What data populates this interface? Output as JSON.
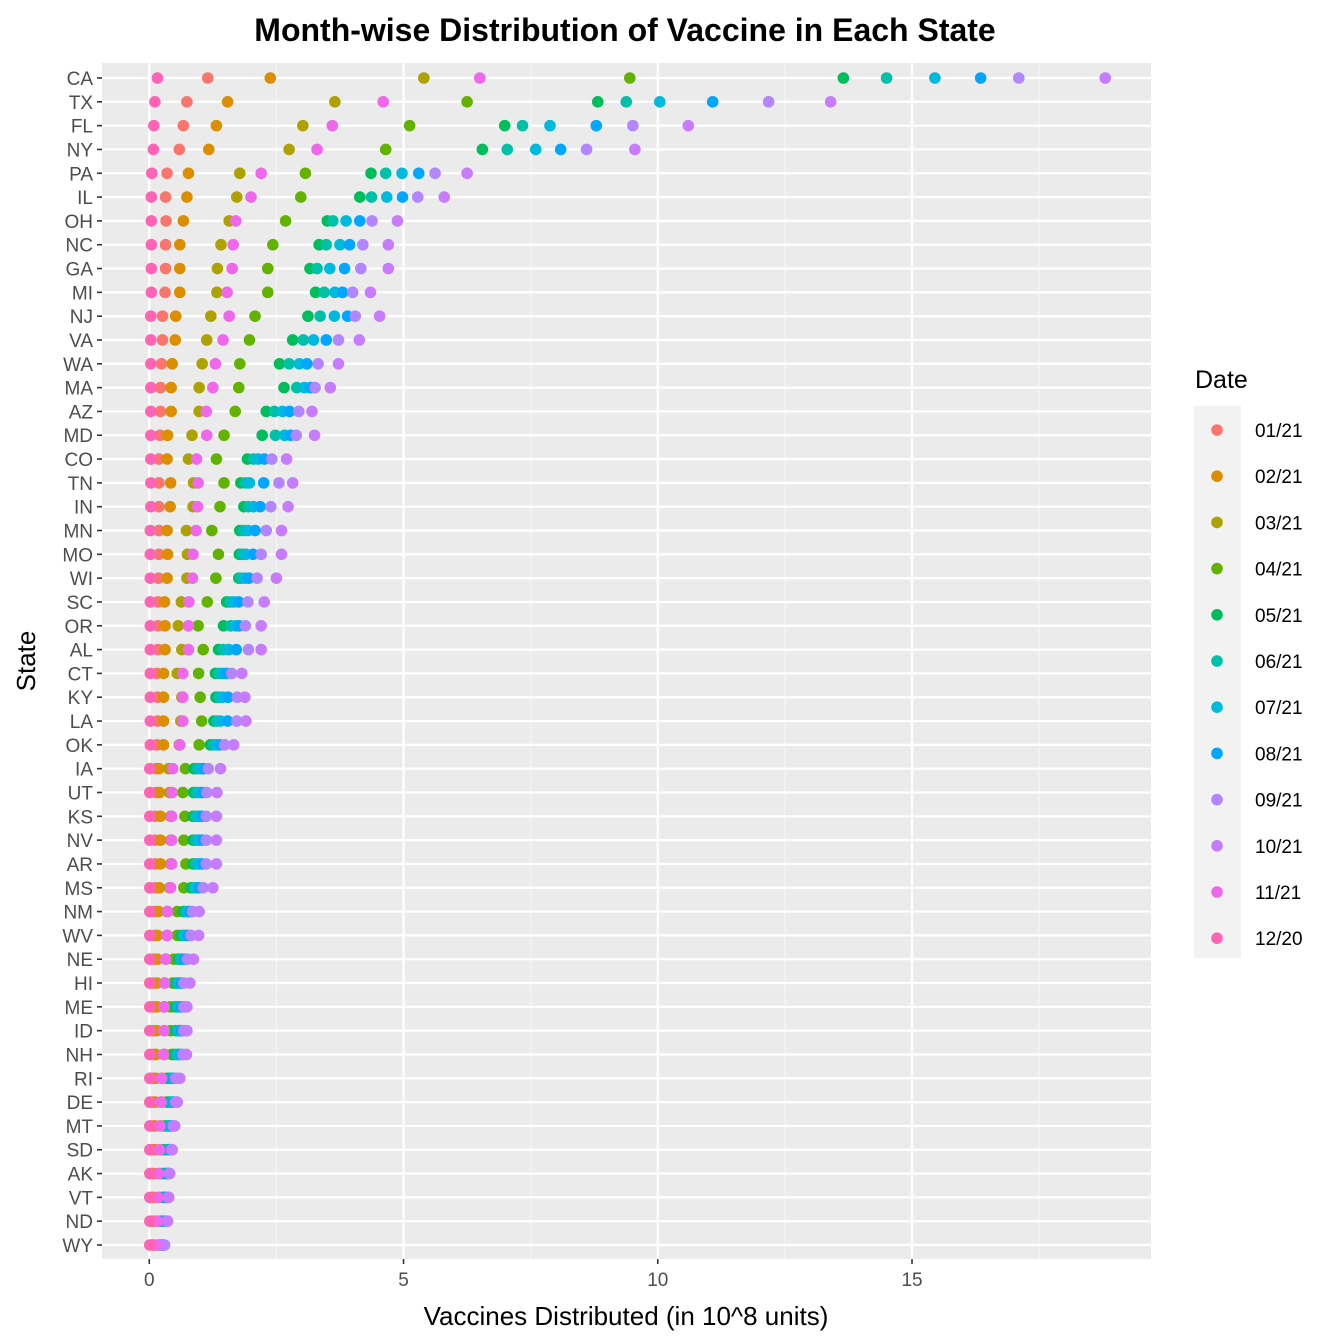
{
  "chart_data": {
    "type": "scatter",
    "title": "Month-wise Distribution of Vaccine in Each State",
    "xlabel": "Vaccines Distributed (in 10^8 units)",
    "ylabel": "State",
    "xlim": [
      -0.93,
      19.7
    ],
    "xticks": [
      "0",
      "5",
      "10",
      "15"
    ],
    "grid": true,
    "legend": {
      "title": "Date",
      "position": "right"
    },
    "categories": [
      "CA",
      "TX",
      "FL",
      "NY",
      "PA",
      "IL",
      "OH",
      "NC",
      "GA",
      "MI",
      "NJ",
      "VA",
      "WA",
      "MA",
      "AZ",
      "MD",
      "CO",
      "TN",
      "IN",
      "MN",
      "MO",
      "WI",
      "SC",
      "OR",
      "AL",
      "CT",
      "KY",
      "LA",
      "OK",
      "IA",
      "UT",
      "KS",
      "NV",
      "AR",
      "MS",
      "NM",
      "WV",
      "NE",
      "HI",
      "ME",
      "ID",
      "NH",
      "RI",
      "DE",
      "MT",
      "SD",
      "AK",
      "VT",
      "ND",
      "WY"
    ],
    "series": [
      {
        "name": "01/21",
        "color": "#F8766D",
        "values": [
          1.15,
          0.74,
          0.67,
          0.59,
          0.35,
          0.32,
          0.33,
          0.32,
          0.32,
          0.31,
          0.26,
          0.26,
          0.24,
          0.22,
          0.22,
          0.21,
          0.19,
          0.19,
          0.19,
          0.19,
          0.19,
          0.18,
          0.17,
          0.17,
          0.17,
          0.15,
          0.16,
          0.16,
          0.15,
          0.13,
          0.13,
          0.12,
          0.12,
          0.12,
          0.12,
          0.1,
          0.1,
          0.09,
          0.08,
          0.08,
          0.08,
          0.08,
          0.07,
          0.07,
          0.06,
          0.06,
          0.06,
          0.05,
          0.05,
          0.05
        ]
      },
      {
        "name": "02/21",
        "color": "#DB8E00",
        "values": [
          2.38,
          1.54,
          1.32,
          1.17,
          0.77,
          0.74,
          0.67,
          0.6,
          0.6,
          0.6,
          0.52,
          0.51,
          0.45,
          0.43,
          0.43,
          0.36,
          0.35,
          0.42,
          0.41,
          0.35,
          0.36,
          0.35,
          0.3,
          0.31,
          0.31,
          0.28,
          0.28,
          0.28,
          0.28,
          0.19,
          0.2,
          0.22,
          0.22,
          0.22,
          0.2,
          0.18,
          0.16,
          0.16,
          0.15,
          0.15,
          0.15,
          0.13,
          0.13,
          0.12,
          0.11,
          0.11,
          0.1,
          0.09,
          0.09,
          0.08
        ]
      },
      {
        "name": "03/21",
        "color": "#AEA200",
        "values": [
          5.4,
          3.65,
          3.02,
          2.75,
          1.78,
          1.72,
          1.57,
          1.41,
          1.34,
          1.33,
          1.21,
          1.13,
          1.04,
          0.98,
          0.98,
          0.84,
          0.77,
          0.87,
          0.86,
          0.73,
          0.75,
          0.74,
          0.63,
          0.57,
          0.64,
          0.55,
          0.64,
          0.62,
          0.59,
          0.38,
          0.4,
          0.42,
          0.42,
          0.42,
          0.4,
          0.35,
          0.35,
          0.33,
          0.3,
          0.3,
          0.3,
          0.3,
          0.25,
          0.25,
          0.22,
          0.22,
          0.2,
          0.18,
          0.18,
          0.16
        ]
      },
      {
        "name": "04/21",
        "color": "#64B200",
        "values": [
          9.45,
          6.25,
          5.12,
          4.65,
          3.07,
          2.98,
          2.68,
          2.43,
          2.33,
          2.33,
          2.08,
          1.97,
          1.78,
          1.76,
          1.69,
          1.47,
          1.32,
          1.47,
          1.39,
          1.23,
          1.36,
          1.31,
          1.14,
          0.96,
          1.06,
          0.97,
          1.0,
          1.03,
          0.98,
          0.71,
          0.66,
          0.7,
          0.68,
          0.72,
          0.68,
          0.55,
          0.55,
          0.48,
          0.46,
          0.42,
          0.42,
          0.44,
          0.35,
          0.35,
          0.3,
          0.28,
          0.25,
          0.24,
          0.22,
          0.2
        ]
      },
      {
        "name": "05/21",
        "color": "#00BD5C",
        "values": [
          13.65,
          8.82,
          6.99,
          6.55,
          4.36,
          4.14,
          3.5,
          3.34,
          3.16,
          3.27,
          3.12,
          2.82,
          2.56,
          2.65,
          2.3,
          2.22,
          1.93,
          1.8,
          1.86,
          1.78,
          1.77,
          1.76,
          1.52,
          1.46,
          1.36,
          1.3,
          1.31,
          1.27,
          1.2,
          0.88,
          0.87,
          0.86,
          0.86,
          0.86,
          0.82,
          0.67,
          0.63,
          0.58,
          0.52,
          0.52,
          0.52,
          0.49,
          0.38,
          0.38,
          0.35,
          0.33,
          0.3,
          0.28,
          0.26,
          0.22
        ]
      },
      {
        "name": "06/21",
        "color": "#00C1A7",
        "values": [
          14.5,
          9.38,
          7.34,
          7.04,
          4.65,
          4.37,
          3.61,
          3.48,
          3.3,
          3.44,
          3.36,
          3.03,
          2.75,
          2.9,
          2.46,
          2.48,
          2.05,
          1.9,
          1.95,
          1.85,
          1.83,
          1.8,
          1.59,
          1.6,
          1.45,
          1.37,
          1.37,
          1.33,
          1.27,
          0.95,
          0.93,
          0.92,
          0.92,
          0.92,
          0.88,
          0.72,
          0.67,
          0.62,
          0.56,
          0.56,
          0.56,
          0.54,
          0.42,
          0.42,
          0.38,
          0.36,
          0.32,
          0.3,
          0.28,
          0.24
        ]
      },
      {
        "name": "07/21",
        "color": "#00BADE",
        "values": [
          15.45,
          10.04,
          7.88,
          7.6,
          4.97,
          4.67,
          3.87,
          3.75,
          3.55,
          3.65,
          3.64,
          3.23,
          2.95,
          3.05,
          2.62,
          2.66,
          2.14,
          1.97,
          2.05,
          1.94,
          1.9,
          1.88,
          1.66,
          1.7,
          1.56,
          1.44,
          1.44,
          1.4,
          1.33,
          1.02,
          1.0,
          0.98,
          0.98,
          0.98,
          0.93,
          0.76,
          0.72,
          0.66,
          0.6,
          0.6,
          0.6,
          0.58,
          0.45,
          0.45,
          0.41,
          0.39,
          0.35,
          0.32,
          0.3,
          0.26
        ]
      },
      {
        "name": "08/21",
        "color": "#00A6FF",
        "values": [
          16.35,
          11.08,
          8.79,
          8.09,
          5.3,
          4.98,
          4.14,
          3.94,
          3.84,
          3.8,
          3.9,
          3.48,
          3.1,
          3.17,
          2.76,
          2.78,
          2.26,
          2.25,
          2.18,
          2.08,
          2.04,
          1.96,
          1.76,
          1.77,
          1.71,
          1.52,
          1.55,
          1.54,
          1.39,
          1.07,
          1.05,
          1.04,
          1.04,
          1.04,
          0.98,
          0.8,
          0.76,
          0.7,
          0.64,
          0.64,
          0.64,
          0.62,
          0.48,
          0.48,
          0.44,
          0.42,
          0.38,
          0.35,
          0.32,
          0.28
        ]
      },
      {
        "name": "09/21",
        "color": "#B385FF",
        "values": [
          17.1,
          12.18,
          9.51,
          8.6,
          5.62,
          5.28,
          4.38,
          4.2,
          4.16,
          4.0,
          4.05,
          3.72,
          3.32,
          3.26,
          2.94,
          2.89,
          2.41,
          2.55,
          2.39,
          2.3,
          2.2,
          2.12,
          1.94,
          1.89,
          1.95,
          1.62,
          1.73,
          1.72,
          1.48,
          1.16,
          1.13,
          1.12,
          1.12,
          1.12,
          1.06,
          0.85,
          0.82,
          0.75,
          0.68,
          0.68,
          0.68,
          0.66,
          0.52,
          0.52,
          0.47,
          0.45,
          0.4,
          0.38,
          0.35,
          0.3
        ]
      },
      {
        "name": "10/21",
        "color": "#C77CFF",
        "values": [
          18.8,
          13.4,
          10.6,
          9.55,
          6.25,
          5.8,
          4.88,
          4.7,
          4.7,
          4.35,
          4.53,
          4.13,
          3.72,
          3.56,
          3.2,
          3.25,
          2.7,
          2.82,
          2.73,
          2.6,
          2.6,
          2.5,
          2.26,
          2.2,
          2.2,
          1.82,
          1.88,
          1.9,
          1.66,
          1.4,
          1.33,
          1.32,
          1.32,
          1.32,
          1.25,
          0.98,
          0.97,
          0.87,
          0.8,
          0.74,
          0.74,
          0.73,
          0.6,
          0.55,
          0.5,
          0.44,
          0.4,
          0.38,
          0.36,
          0.22
        ]
      },
      {
        "name": "11/21",
        "color": "#EF67EB",
        "values": [
          6.5,
          4.6,
          3.6,
          3.3,
          2.2,
          2.0,
          1.7,
          1.65,
          1.63,
          1.53,
          1.57,
          1.45,
          1.3,
          1.25,
          1.12,
          1.13,
          0.93,
          0.96,
          0.95,
          0.92,
          0.86,
          0.85,
          0.78,
          0.77,
          0.77,
          0.66,
          0.66,
          0.66,
          0.6,
          0.46,
          0.45,
          0.44,
          0.44,
          0.44,
          0.42,
          0.36,
          0.35,
          0.32,
          0.3,
          0.29,
          0.29,
          0.28,
          0.24,
          0.23,
          0.21,
          0.2,
          0.18,
          0.17,
          0.16,
          0.13
        ]
      },
      {
        "name": "12/20",
        "color": "#FF63B6",
        "values": [
          0.16,
          0.11,
          0.09,
          0.08,
          0.05,
          0.04,
          0.04,
          0.04,
          0.04,
          0.04,
          0.03,
          0.03,
          0.03,
          0.03,
          0.03,
          0.03,
          0.03,
          0.03,
          0.03,
          0.02,
          0.02,
          0.02,
          0.02,
          0.02,
          0.02,
          0.02,
          0.02,
          0.02,
          0.02,
          0.01,
          0.01,
          0.01,
          0.01,
          0.01,
          0.01,
          0.01,
          0.01,
          0.01,
          0.01,
          0.01,
          0.01,
          0.01,
          0.01,
          0.01,
          0.01,
          0.01,
          0.01,
          0.01,
          0.01,
          0.01
        ]
      }
    ]
  }
}
